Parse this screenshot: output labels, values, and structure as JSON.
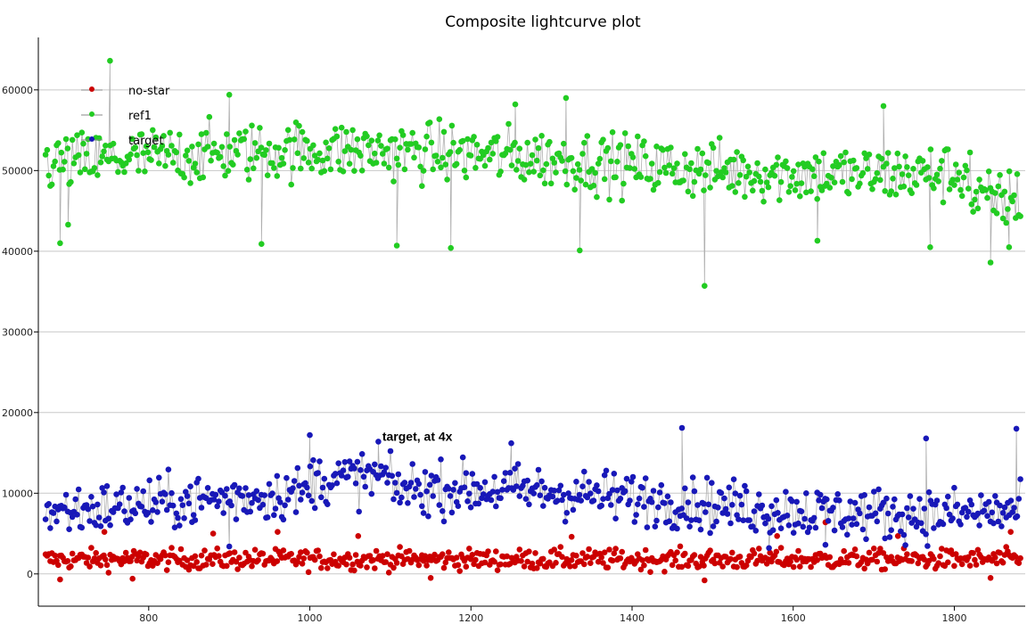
{
  "chart_data": {
    "type": "scatter",
    "title": "Composite lightcurve plot",
    "xlabel": "",
    "ylabel": "",
    "xlim": [
      663,
      1888
    ],
    "ylim": [
      -4000,
      66500
    ],
    "x_ticks": [
      800,
      1000,
      1200,
      1400,
      1600,
      1800
    ],
    "y_ticks": [
      0,
      10000,
      20000,
      30000,
      40000,
      50000,
      60000
    ],
    "grid": "horizontal",
    "legend_placement": "top-left",
    "annotations": [
      {
        "text": "target, at 4x",
        "x": 1090,
        "y": 16500
      }
    ],
    "x_range": [
      672,
      1882
    ],
    "series": [
      {
        "name": "no-star",
        "color": "#cc0000",
        "marker": "circle",
        "connect": false,
        "baseline": 1800,
        "outliers": [
          {
            "x": 690,
            "y": -700
          },
          {
            "x": 780,
            "y": -600
          },
          {
            "x": 745,
            "y": 5200
          },
          {
            "x": 880,
            "y": 5000
          },
          {
            "x": 960,
            "y": 5200
          },
          {
            "x": 1060,
            "y": 4700
          },
          {
            "x": 1150,
            "y": -500
          },
          {
            "x": 1325,
            "y": 4600
          },
          {
            "x": 1490,
            "y": -800
          },
          {
            "x": 1580,
            "y": 4700
          },
          {
            "x": 1640,
            "y": 6400
          },
          {
            "x": 1730,
            "y": 4700
          },
          {
            "x": 1845,
            "y": -500
          },
          {
            "x": 1870,
            "y": 5200
          }
        ]
      },
      {
        "name": "ref1",
        "color": "#22cc22",
        "marker": "circle",
        "connect": true,
        "baseline": 51000,
        "outliers": [
          {
            "x": 700,
            "y": 43300
          },
          {
            "x": 690,
            "y": 41000
          },
          {
            "x": 752,
            "y": 63600
          },
          {
            "x": 940,
            "y": 40900
          },
          {
            "x": 1108,
            "y": 40700
          },
          {
            "x": 1175,
            "y": 40400
          },
          {
            "x": 1335,
            "y": 40100
          },
          {
            "x": 1490,
            "y": 35700
          },
          {
            "x": 1630,
            "y": 41300
          },
          {
            "x": 1770,
            "y": 40500
          },
          {
            "x": 1845,
            "y": 38600
          },
          {
            "x": 1868,
            "y": 40500
          },
          {
            "x": 900,
            "y": 59400
          },
          {
            "x": 1318,
            "y": 59000
          },
          {
            "x": 1255,
            "y": 58200
          },
          {
            "x": 1712,
            "y": 58000
          }
        ]
      },
      {
        "name": "target",
        "color": "#1818b8",
        "marker": "circle",
        "connect": true,
        "baseline": 9000,
        "outliers": [
          {
            "x": 1000,
            "y": 17200
          },
          {
            "x": 1462,
            "y": 18100
          },
          {
            "x": 1877,
            "y": 18000
          },
          {
            "x": 1085,
            "y": 16400
          },
          {
            "x": 1250,
            "y": 16200
          },
          {
            "x": 1765,
            "y": 16800
          },
          {
            "x": 900,
            "y": 3400
          },
          {
            "x": 1570,
            "y": 3200
          },
          {
            "x": 1640,
            "y": 3600
          }
        ]
      }
    ]
  }
}
